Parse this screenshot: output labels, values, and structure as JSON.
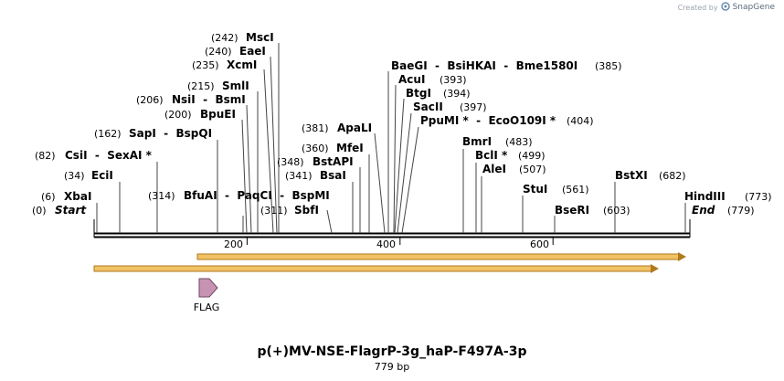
{
  "brand": {
    "created_by": "Created by",
    "name": "SnapGene"
  },
  "title": "p(+)MV-NSE-FlagrP-3g_haP-F497A-3p",
  "length_label": "779 bp",
  "start_label": {
    "pos": "(0)",
    "name": "Start"
  },
  "end_label": {
    "pos": "(779)",
    "name": "End"
  },
  "ruler": {
    "min": 0,
    "max": 779,
    "ticks": [
      200,
      400,
      600
    ]
  },
  "colors": {
    "arrow_fill": "#f0c264",
    "arrow_stroke": "#b07a1e",
    "flag_fill": "#c893b2",
    "line": "#000000"
  },
  "sites": [
    {
      "name": "XbaI",
      "pos": 6
    },
    {
      "name": "EciI",
      "pos": 34
    },
    {
      "name": "CsiI - SexAI *",
      "pos": 82
    },
    {
      "name": "SapI - BspQI",
      "pos": 162
    },
    {
      "name": "BpuEI",
      "pos": 200
    },
    {
      "name": "NsiI - BsmI",
      "pos": 206
    },
    {
      "name": "SmlI",
      "pos": 215
    },
    {
      "name": "XcmI",
      "pos": 235
    },
    {
      "name": "EaeI",
      "pos": 240
    },
    {
      "name": "MscI",
      "pos": 242
    },
    {
      "name": "BfuAI - PaqCI - BspMI",
      "pos": 314
    },
    {
      "name": "SbfI",
      "pos": 311
    },
    {
      "name": "BsaI",
      "pos": 341
    },
    {
      "name": "BstAPI",
      "pos": 348
    },
    {
      "name": "MfeI",
      "pos": 360
    },
    {
      "name": "ApaLI",
      "pos": 381
    },
    {
      "name": "BaeGI - BsiHKAI - Bme1580I",
      "pos": 385
    },
    {
      "name": "AcuI",
      "pos": 393
    },
    {
      "name": "BtgI",
      "pos": 394
    },
    {
      "name": "SacII",
      "pos": 397
    },
    {
      "name": "PpuMI * - EcoO109I *",
      "pos": 404
    },
    {
      "name": "BmrI",
      "pos": 483
    },
    {
      "name": "BclI *",
      "pos": 499
    },
    {
      "name": "AleI",
      "pos": 507
    },
    {
      "name": "StuI",
      "pos": 561
    },
    {
      "name": "BseRI",
      "pos": 603
    },
    {
      "name": "BstXI",
      "pos": 682
    },
    {
      "name": "HindIII",
      "pos": 773
    }
  ],
  "features": [
    {
      "name": "",
      "type": "orf",
      "start": 133,
      "end": 773,
      "direction": "forward"
    },
    {
      "name": "",
      "type": "orf",
      "start": 1,
      "end": 732,
      "direction": "forward"
    },
    {
      "name": "FLAG",
      "type": "tag",
      "start": 136,
      "end": 160,
      "direction": "forward"
    }
  ]
}
